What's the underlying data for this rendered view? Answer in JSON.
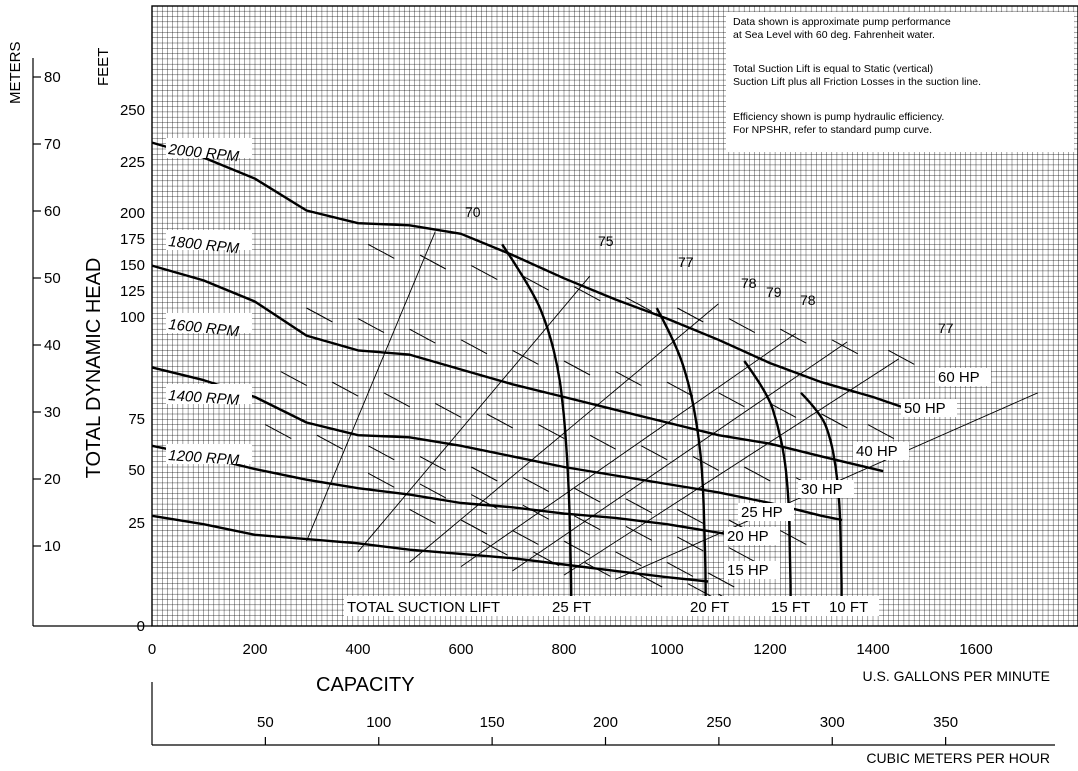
{
  "chart_data": {
    "type": "line",
    "title": "",
    "xlabel": "CAPACITY",
    "x_units": "U.S. GALLONS PER MINUTE",
    "x_secondary_units": "CUBIC METERS PER HOUR",
    "ylabel": "TOTAL DYNAMIC HEAD",
    "y_units": "FEET",
    "y_secondary_units": "METERS",
    "xlim": [
      0,
      1800
    ],
    "ylim": [
      0,
      275
    ],
    "grid": true,
    "x_ticks": [
      0,
      200,
      400,
      600,
      800,
      1000,
      1200,
      1400,
      1600
    ],
    "y_ticks": [
      0,
      25,
      50,
      75,
      100,
      125,
      150,
      175,
      200,
      225,
      250
    ],
    "y_tick_labels": [
      "0",
      "25",
      "50",
      "75",
      "100",
      "125",
      "150",
      "175",
      "200",
      "225",
      "250"
    ],
    "m3h_ticks": [
      50,
      100,
      150,
      200,
      250,
      300,
      350
    ],
    "meter_ticks": [
      10,
      20,
      30,
      40,
      50,
      60,
      70,
      80
    ],
    "notes": [
      "Data shown is approximate pump performance",
      "at Sea Level with 60 deg. Fahrenheit water.",
      "Total Suction Lift is equal to Static (vertical)",
      "Suction Lift plus all Friction Losses in the suction line.",
      "Efficiency shown is pump hydraulic efficiency.",
      "For NPSHR, refer to standard pump curve."
    ],
    "series": [
      {
        "name": "2000 RPM",
        "x": [
          0,
          100,
          200,
          300,
          400,
          500,
          600,
          700,
          800,
          900,
          1000,
          1100,
          1200,
          1300,
          1400,
          1460
        ],
        "y": [
          228,
          221,
          211,
          196,
          190,
          189,
          185,
          175,
          164,
          154,
          145,
          135,
          124,
          115,
          108,
          103
        ]
      },
      {
        "name": "1800 RPM",
        "x": [
          0,
          100,
          200,
          300,
          400,
          500,
          600,
          700,
          800,
          900,
          1000,
          1100,
          1200,
          1300,
          1420
        ],
        "y": [
          170,
          163,
          153,
          137,
          130,
          128,
          121,
          114,
          108,
          102,
          96,
          90,
          86,
          80,
          73
        ]
      },
      {
        "name": "1600 RPM",
        "x": [
          0,
          100,
          200,
          300,
          400,
          500,
          600,
          700,
          800,
          900,
          1000,
          1100,
          1200,
          1300,
          1340
        ],
        "y": [
          122,
          116,
          108,
          96,
          90,
          89,
          85,
          80,
          75,
          71,
          67,
          63,
          58,
          52,
          50
        ]
      },
      {
        "name": "1400 RPM",
        "x": [
          0,
          100,
          200,
          300,
          400,
          500,
          600,
          700,
          800,
          900,
          1000,
          1100,
          1200
        ],
        "y": [
          85,
          80,
          74,
          69,
          65,
          62,
          58,
          56,
          53,
          51,
          48,
          44,
          40
        ]
      },
      {
        "name": "1200 RPM",
        "x": [
          0,
          100,
          200,
          300,
          400,
          500,
          600,
          700,
          800,
          900,
          1000,
          1080
        ],
        "y": [
          52,
          48,
          43,
          41,
          39,
          36,
          34,
          32,
          29,
          26,
          23,
          21
        ]
      }
    ],
    "suction_lift_curves": [
      {
        "label": "25 FT",
        "x": [
          680,
          740,
          770,
          790,
          800,
          806,
          810,
          812,
          814,
          814
        ],
        "y": [
          180,
          158,
          140,
          120,
          100,
          80,
          60,
          40,
          20,
          10
        ]
      },
      {
        "label": "20 FT",
        "x": [
          980,
          1020,
          1045,
          1058,
          1066,
          1070,
          1072,
          1074,
          1075,
          1075
        ],
        "y": [
          150,
          132,
          112,
          95,
          80,
          65,
          50,
          35,
          20,
          10
        ]
      },
      {
        "label": "15 FT",
        "x": [
          1150,
          1195,
          1215,
          1228,
          1234,
          1237,
          1238,
          1239,
          1240,
          1240
        ],
        "y": [
          125,
          110,
          95,
          80,
          66,
          54,
          42,
          30,
          20,
          10
        ]
      },
      {
        "label": "10 FT",
        "x": [
          1260,
          1300,
          1318,
          1328,
          1333,
          1336,
          1337,
          1338,
          1339,
          1339
        ],
        "y": [
          110,
          100,
          88,
          75,
          63,
          52,
          42,
          32,
          20,
          10
        ]
      }
    ],
    "suction_lift_caption": "TOTAL SUCTION LIFT",
    "efficiency_lines": [
      {
        "label": "70",
        "x": [
          300,
          550
        ],
        "y": [
          40,
          186
        ]
      },
      {
        "label": "75",
        "x": [
          400,
          850
        ],
        "y": [
          35,
          165
        ]
      },
      {
        "label": "77",
        "x": [
          500,
          1100
        ],
        "y": [
          30,
          152
        ]
      },
      {
        "label": "78",
        "x": [
          600,
          1250
        ],
        "y": [
          28,
          138
        ]
      },
      {
        "label": "79",
        "x": [
          700,
          1350
        ],
        "y": [
          26,
          134
        ]
      },
      {
        "label": "78",
        "x": [
          800,
          1450
        ],
        "y": [
          24,
          126
        ]
      },
      {
        "label": "77",
        "x": [
          900,
          1720
        ],
        "y": [
          22,
          110
        ]
      }
    ],
    "horsepower_labels": [
      "60 HP",
      "50 HP",
      "40 HP",
      "30 HP",
      "25 HP",
      "20 HP",
      "15 HP"
    ]
  }
}
